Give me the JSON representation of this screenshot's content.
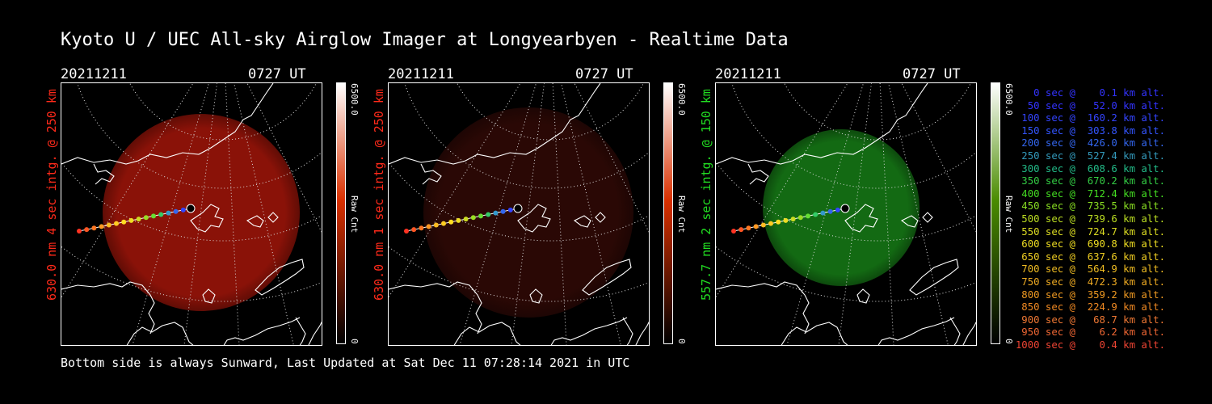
{
  "title": "Kyoto U / UEC All-sky Airglow Imager at Longyearbyen - Realtime Data",
  "footer": "Bottom side is always Sunward, Last Updated at Sat Dec 11 07:28:14 2021 in UTC",
  "colors": {
    "red": "#ff2a1a",
    "green": "#22dd22",
    "panel1_image": "#8a1208",
    "panel2_image": "#2a0805",
    "panel3_image": "#136a13",
    "cbar_red": "#d93000",
    "cbar_green": "#4a8c00"
  },
  "panels": [
    {
      "date": "20211211",
      "time": "0727 UT",
      "side_label": "630.0 nm 4 sec intg. @ 250 km",
      "cbar_max": "6500.0",
      "cbar_min": "0",
      "cbar_title": "Raw Cnt"
    },
    {
      "date": "20211211",
      "time": "0727 UT",
      "side_label": "630.0 nm 1 sec intg. @ 250 km",
      "cbar_max": "6500.0",
      "cbar_min": "0",
      "cbar_title": "Raw Cnt"
    },
    {
      "date": "20211211",
      "time": "0727 UT",
      "side_label": "557.7 nm 2 sec intg. @ 150 km",
      "cbar_max": "6500.0",
      "cbar_min": "0",
      "cbar_title": "Raw Cnt"
    }
  ],
  "legend": [
    {
      "text": "   0 sec @    0.1 km alt.",
      "color": "#3333ff"
    },
    {
      "text": "  50 sec @   52.0 km alt.",
      "color": "#3333ff"
    },
    {
      "text": " 100 sec @  160.2 km alt.",
      "color": "#3344ff"
    },
    {
      "text": " 150 sec @  303.8 km alt.",
      "color": "#3355ff"
    },
    {
      "text": " 200 sec @  426.0 km alt.",
      "color": "#3366ee"
    },
    {
      "text": " 250 sec @  527.4 km alt.",
      "color": "#3399bb"
    },
    {
      "text": " 300 sec @  608.6 km alt.",
      "color": "#22bb88"
    },
    {
      "text": " 350 sec @  670.2 km alt.",
      "color": "#33cc44"
    },
    {
      "text": " 400 sec @  712.4 km alt.",
      "color": "#44dd22"
    },
    {
      "text": " 450 sec @  735.5 km alt.",
      "color": "#88dd22"
    },
    {
      "text": " 500 sec @  739.6 km alt.",
      "color": "#bbdd22"
    },
    {
      "text": " 550 sec @  724.7 km alt.",
      "color": "#dddd22"
    },
    {
      "text": " 600 sec @  690.8 km alt.",
      "color": "#eedd22"
    },
    {
      "text": " 650 sec @  637.6 km alt.",
      "color": "#eecc22"
    },
    {
      "text": " 700 sec @  564.9 km alt.",
      "color": "#eebb22"
    },
    {
      "text": " 750 sec @  472.3 km alt.",
      "color": "#eeaa22"
    },
    {
      "text": " 800 sec @  359.2 km alt.",
      "color": "#ee9922"
    },
    {
      "text": " 850 sec @  224.9 km alt.",
      "color": "#ee8822"
    },
    {
      "text": " 900 sec @   68.7 km alt.",
      "color": "#ee7733"
    },
    {
      "text": " 950 sec @    6.2 km alt.",
      "color": "#ee6633"
    },
    {
      "text": "1000 sec @    0.4 km alt.",
      "color": "#ee4433"
    }
  ]
}
